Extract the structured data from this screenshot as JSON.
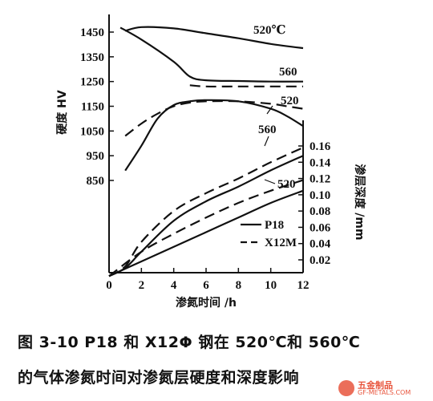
{
  "chart_data": {
    "type": "line",
    "x_ticks": [
      0,
      2,
      4,
      6,
      8,
      10,
      12
    ],
    "xlabel": "渗氮时间 /h",
    "ylabel_left": "硬度 HV",
    "ylabel_right": "渗层深度 /mm",
    "left_ticks": [
      850,
      950,
      1050,
      1150,
      1250,
      1350,
      1450
    ],
    "right_ticks": [
      "0.02",
      "0.04",
      "0.06",
      "0.08",
      "0.10",
      "0.12",
      "0.14",
      "0.16"
    ],
    "legend": [
      {
        "label": "P18",
        "style": "solid"
      },
      {
        "label": "X12M",
        "style": "dashed"
      }
    ],
    "annotations": {
      "t520_top": "520℃",
      "t560_hard": "560",
      "t520_hard": "520",
      "t560_depth": "560",
      "t520_depth": "520"
    },
    "series": [
      {
        "label": "P18",
        "axis": "hardness",
        "temp": "520",
        "x": [
          1,
          2,
          4,
          6,
          8,
          10,
          12
        ],
        "y": [
          1455,
          1470,
          1465,
          1445,
          1425,
          1402,
          1385
        ]
      },
      {
        "label": "P18",
        "axis": "hardness",
        "temp": "560",
        "x": [
          0.7,
          2,
          4,
          5,
          6,
          8,
          10,
          12
        ],
        "y": [
          1468,
          1420,
          1330,
          1270,
          1255,
          1252,
          1250,
          1250
        ]
      },
      {
        "label": "X12M",
        "axis": "hardness",
        "temp": "560",
        "x": [
          5,
          6,
          8,
          10,
          12
        ],
        "y": [
          1235,
          1230,
          1230,
          1230,
          1230
        ]
      },
      {
        "label": "X12M",
        "axis": "hardness",
        "temp": "520",
        "x": [
          1,
          2,
          3,
          4,
          5,
          6,
          8,
          10,
          11,
          12
        ],
        "y": [
          1030,
          1080,
          1120,
          1150,
          1165,
          1170,
          1170,
          1160,
          1150,
          1140
        ]
      },
      {
        "label": "P18",
        "axis": "hardness",
        "temp": "520",
        "x": [
          1,
          2,
          3,
          4,
          5,
          6,
          8,
          10,
          11,
          12
        ],
        "y": [
          890,
          990,
          1100,
          1155,
          1170,
          1175,
          1170,
          1140,
          1110,
          1070
        ]
      },
      {
        "label": "X12M",
        "axis": "depth",
        "temp": "560",
        "x": [
          0,
          1,
          2,
          4,
          6,
          8,
          10,
          12
        ],
        "y": [
          0.0,
          0.012,
          0.042,
          0.08,
          0.102,
          0.12,
          0.14,
          0.158
        ]
      },
      {
        "label": "P18",
        "axis": "depth",
        "temp": "560",
        "x": [
          0,
          1,
          2,
          4,
          6,
          8,
          10,
          12
        ],
        "y": [
          0.0,
          0.01,
          0.03,
          0.068,
          0.092,
          0.11,
          0.13,
          0.148
        ]
      },
      {
        "label": "X12M",
        "axis": "depth",
        "temp": "520",
        "x": [
          0,
          2,
          4,
          6,
          8,
          10,
          12
        ],
        "y": [
          0.0,
          0.03,
          0.052,
          0.072,
          0.09,
          0.105,
          0.118
        ]
      },
      {
        "label": "P18",
        "axis": "depth",
        "temp": "520",
        "x": [
          0,
          2,
          4,
          6,
          8,
          10,
          12
        ],
        "y": [
          0.0,
          0.018,
          0.036,
          0.054,
          0.072,
          0.09,
          0.105
        ]
      }
    ]
  },
  "caption": {
    "line1": "图 3-10   P18 和 X12Φ 钢在 520℃和 560℃",
    "line2": "的气体渗氮时间对渗氮层硬度和深度影响"
  },
  "watermark": {
    "text1": "五金制品",
    "text2": "GF-METALS.COM"
  }
}
